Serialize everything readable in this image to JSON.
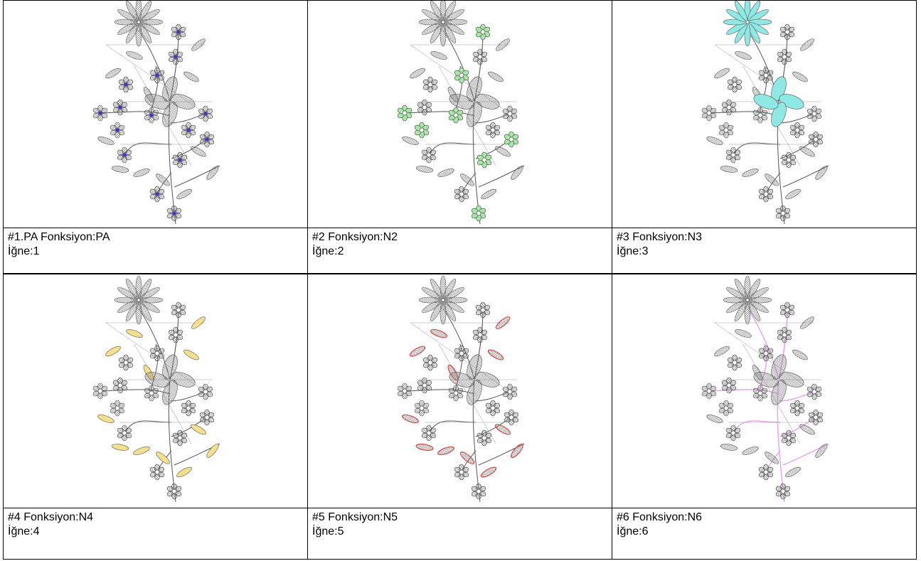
{
  "cells": [
    {
      "function": "#1.PA Fonksiyon:PA",
      "needle": "İğne:1"
    },
    {
      "function": "#2 Fonksiyon:N2",
      "needle": "İğne:2"
    },
    {
      "function": "#3 Fonksiyon:N3",
      "needle": "İğne:3"
    },
    {
      "function": "#4 Fonksiyon:N4",
      "needle": "İğne:4"
    },
    {
      "function": "#5 Fonksiyon:N5",
      "needle": "İğne:5"
    },
    {
      "function": "#6 Fonksiyon:N6",
      "needle": "İğne:6"
    }
  ]
}
